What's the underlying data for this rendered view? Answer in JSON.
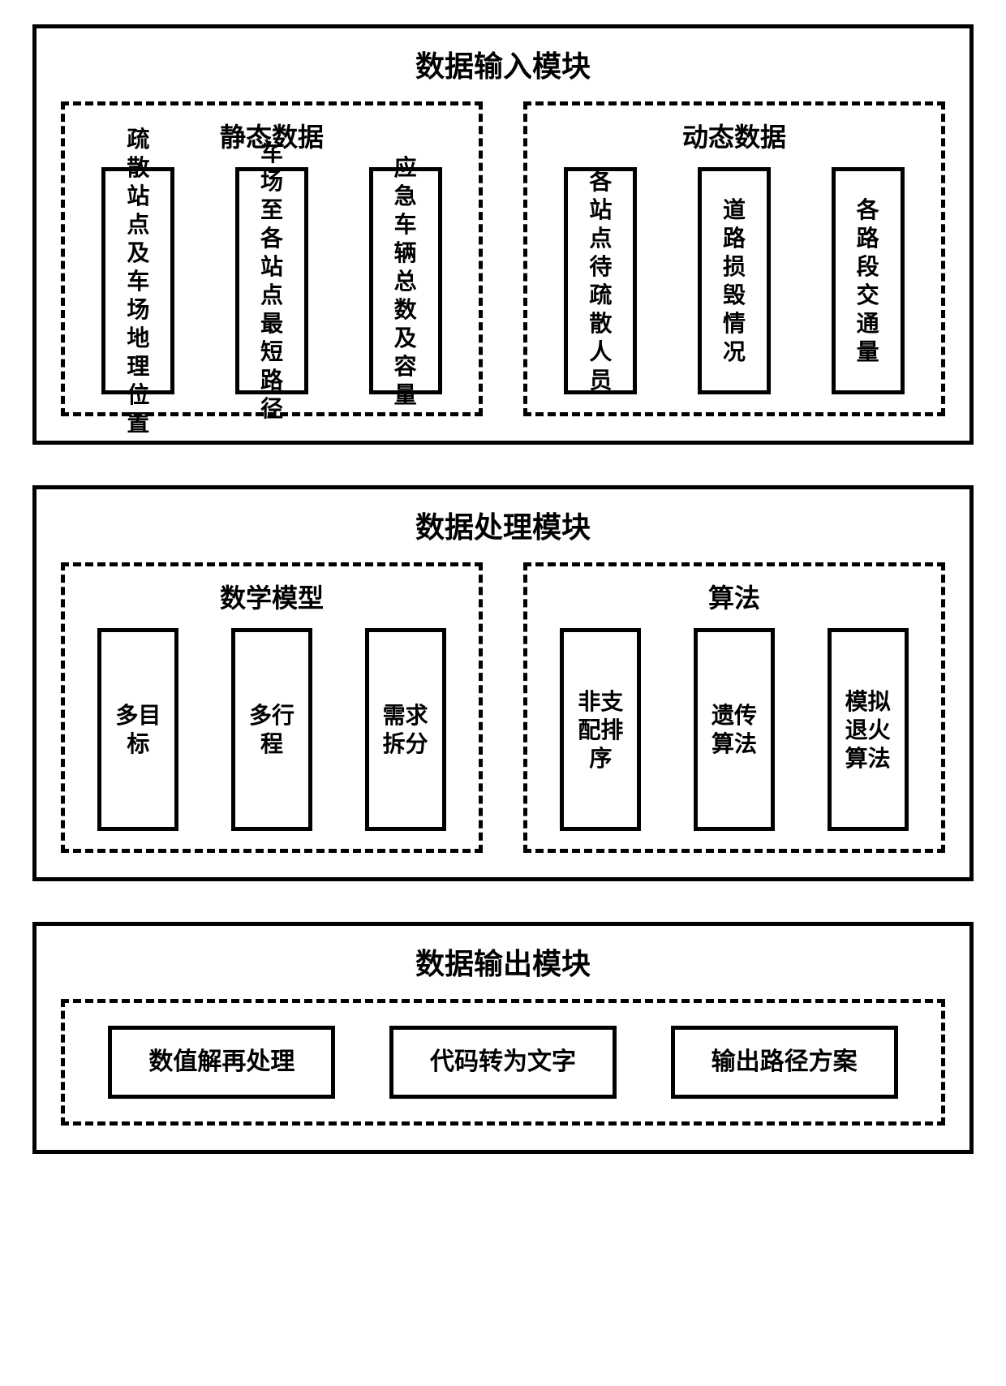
{
  "colors": {
    "border": "#000000",
    "bg": "#ffffff",
    "text": "#000000"
  },
  "fonts": {
    "title_pt": 36,
    "section_pt": 32,
    "item_pt": 28
  },
  "modules": {
    "input": {
      "title": "数据输入模块",
      "sections": {
        "static": {
          "title": "静态数据",
          "items": [
            "疏散站点及车场地理位置",
            "车场至各站点最短路径",
            "应急车辆总数及容量"
          ]
        },
        "dynamic": {
          "title": "动态数据",
          "items": [
            "各站点待疏散人员",
            "道路损毁情况",
            "各路段交通量"
          ]
        }
      }
    },
    "process": {
      "title": "数据处理模块",
      "sections": {
        "model": {
          "title": "数学模型",
          "items": [
            "多目标",
            "多行程",
            "需求拆分"
          ]
        },
        "algo": {
          "title": "算法",
          "items": [
            "非支配排序",
            "遗传算法",
            "模拟退火算法"
          ]
        }
      }
    },
    "output": {
      "title": "数据输出模块",
      "items": [
        "数值解再处理",
        "代码转为文字",
        "输出路径方案"
      ]
    }
  }
}
